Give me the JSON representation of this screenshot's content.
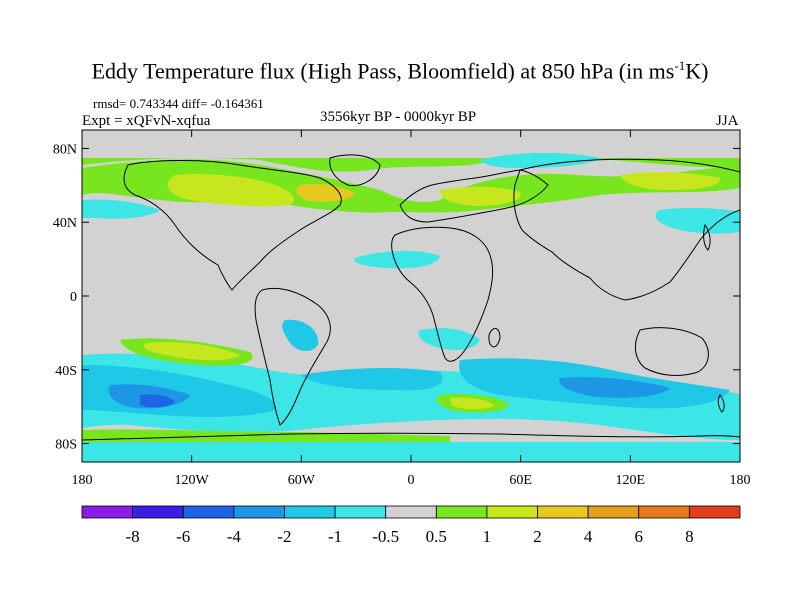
{
  "title": {
    "main": "Eddy Temperature flux (High Pass, Bloomfield) at 850 hPa (in ms",
    "sup": "-1",
    "tail": "K)"
  },
  "stats": "rmsd= 0.743344 diff= -0.164361",
  "experiment": "Expt = xQFvN-xqfua",
  "period": "3556kyr BP - 0000kyr BP",
  "season": "JJA",
  "map": {
    "lat_range": [
      -90,
      90
    ],
    "lon_range": [
      -180,
      180
    ],
    "background_color": "#d2d2d2",
    "lat_ticks": [
      {
        "lat": 80,
        "label": "80N"
      },
      {
        "lat": 40,
        "label": "40N"
      },
      {
        "lat": 0,
        "label": "0"
      },
      {
        "lat": -40,
        "label": "40S"
      },
      {
        "lat": -80,
        "label": "80S"
      }
    ],
    "lon_ticks": [
      {
        "lon": -180,
        "label": "180"
      },
      {
        "lon": -120,
        "label": "120W"
      },
      {
        "lon": -60,
        "label": "60W"
      },
      {
        "lon": 0,
        "label": "0"
      },
      {
        "lon": 60,
        "label": "60E"
      },
      {
        "lon": 120,
        "label": "120E"
      },
      {
        "lon": 180,
        "label": "180"
      }
    ]
  },
  "colorbar": {
    "colors": [
      "#8a1ee6",
      "#3a1ee6",
      "#1e64e6",
      "#1e96e6",
      "#1ec8e6",
      "#3ce6e6",
      "#d2d2d2",
      "#78e61e",
      "#c8e61e",
      "#e6c81e",
      "#e6a01e",
      "#e6781e",
      "#e63c1e"
    ],
    "labels": [
      "-8",
      "-6",
      "-4",
      "-2",
      "-1",
      "-0.5",
      "0.5",
      "1",
      "2",
      "4",
      "6",
      "8"
    ]
  }
}
